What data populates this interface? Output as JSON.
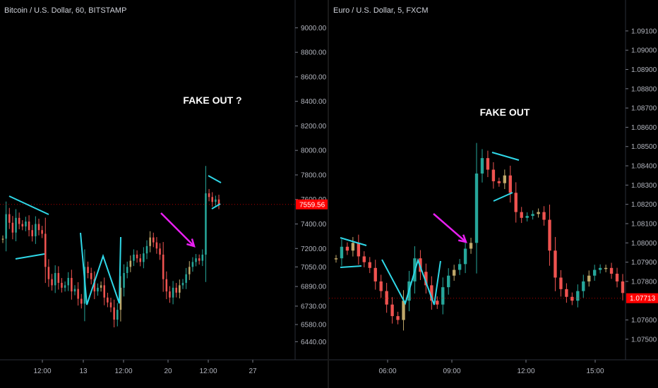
{
  "chart_data": [
    {
      "type": "candlestick",
      "title": "Bitcoin / U.S. Dollar, 60, BITSTAMP",
      "annotation": "FAKE OUT ?",
      "current_price": "7559.56",
      "y_ticks": [
        "9000.00",
        "8800.00",
        "8600.00",
        "8400.00",
        "8200.00",
        "8000.00",
        "7800.00",
        "7600.00",
        "7400.00",
        "7200.00",
        "7050.00",
        "6890.00",
        "6730.00",
        "6580.00",
        "6440.00"
      ],
      "x_ticks": [
        "12:00",
        "13",
        "12:00",
        "20",
        "12:00",
        "27"
      ],
      "ylim": [
        6350,
        9100
      ],
      "series": [
        {
          "values": [
            7280,
            7480,
            7410,
            7330,
            7450,
            7400,
            7380,
            7420,
            7350,
            7300,
            7400,
            7350,
            7320,
            7050,
            6950,
            6900,
            7000,
            6920,
            6880,
            6900,
            6960,
            6850,
            6870,
            6790,
            6750,
            7050,
            7000,
            6950,
            6850,
            6880,
            6900,
            6800,
            6760,
            6720,
            6620,
            6700,
            6880,
            7000,
            7050,
            7100,
            7150,
            7120,
            7090,
            7160,
            7220,
            7290,
            7250,
            7200,
            7150,
            6950,
            6850,
            6800,
            6880,
            6840,
            6900,
            6920,
            6990,
            7050,
            7090,
            7120,
            7100,
            7150,
            7650,
            7620,
            7580,
            7600,
            7560
          ]
        }
      ]
    },
    {
      "type": "candlestick",
      "title": "Euro / U.S. Dollar, 5, FXCM",
      "annotation": "FAKE OUT",
      "current_price": "1.07713",
      "y_ticks": [
        "1.09100",
        "1.09000",
        "1.08900",
        "1.08800",
        "1.08700",
        "1.08600",
        "1.08500",
        "1.08400",
        "1.08300",
        "1.08200",
        "1.08100",
        "1.08000",
        "1.07900",
        "1.07800",
        "1.07600",
        "1.07500"
      ],
      "x_ticks": [
        "06:00",
        "09:00",
        "12:00",
        "15:00"
      ],
      "ylim": [
        1.0743,
        1.0918
      ],
      "series": [
        {
          "values": [
            1.0792,
            1.0798,
            1.0796,
            1.08,
            1.0793,
            1.079,
            1.0787,
            1.078,
            1.0775,
            1.0768,
            1.0762,
            1.076,
            1.077,
            1.078,
            1.0792,
            1.0785,
            1.0778,
            1.077,
            1.0768,
            1.0777,
            1.0783,
            1.0786,
            1.0789,
            1.0797,
            1.08,
            1.0836,
            1.0844,
            1.0838,
            1.0832,
            1.0831,
            1.0835,
            1.0826,
            1.0816,
            1.0813,
            1.0814,
            1.0815,
            1.0816,
            1.0812,
            1.0796,
            1.0782,
            1.0776,
            1.0772,
            1.077,
            1.0775,
            1.078,
            1.0783,
            1.0786,
            1.0787,
            1.0787,
            1.0784,
            1.078,
            1.0774
          ]
        }
      ]
    }
  ],
  "colors": {
    "up": "#26a69a",
    "down": "#ef5350",
    "up_alt": "#bfa86a",
    "drawing_cyan": "#2fd8e8",
    "arrow_magenta": "#e81ff0",
    "price_tag": "#ff0000",
    "background": "#000000"
  },
  "icons": {
    "arrow": "magenta-arrow-icon"
  }
}
